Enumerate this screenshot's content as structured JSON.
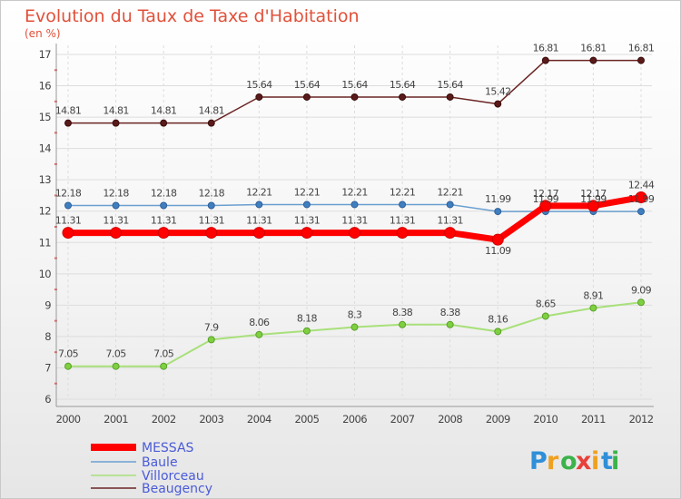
{
  "chart_data": {
    "type": "line",
    "title": "Evolution du Taux de Taxe d'Habitation",
    "ylabel": "(en %)",
    "xlabel": "",
    "x": [
      "2000",
      "2001",
      "2002",
      "2003",
      "2004",
      "2005",
      "2006",
      "2007",
      "2008",
      "2009",
      "2010",
      "2011",
      "2012"
    ],
    "ylim": [
      6,
      17
    ],
    "yticks": [
      "6",
      "7",
      "8",
      "9",
      "10",
      "11",
      "12",
      "13",
      "14",
      "15",
      "16",
      "17"
    ],
    "series": [
      {
        "name": "MESSAS",
        "color": "#ff0000",
        "values": [
          11.31,
          11.31,
          11.31,
          11.31,
          11.31,
          11.31,
          11.31,
          11.31,
          11.31,
          11.09,
          12.17,
          12.17,
          12.44
        ],
        "labels": [
          "11.31",
          "11.31",
          "11.31",
          "11.31",
          "11.31",
          "11.31",
          "11.31",
          "11.31",
          "11.31",
          "11.09",
          "12.17",
          "12.17",
          "12.44"
        ]
      },
      {
        "name": "Baule",
        "color": "#6a9fd0",
        "values": [
          12.18,
          12.18,
          12.18,
          12.18,
          12.21,
          12.21,
          12.21,
          12.21,
          12.21,
          11.99,
          11.99,
          11.99,
          11.99
        ],
        "labels": [
          "12.18",
          "12.18",
          "12.18",
          "12.18",
          "12.21",
          "12.21",
          "12.21",
          "12.21",
          "12.21",
          "11.99",
          "11.99",
          "11.99",
          "11.99"
        ]
      },
      {
        "name": "Villorceau",
        "color": "#a8e07a",
        "values": [
          7.05,
          7.05,
          7.05,
          7.9,
          8.06,
          8.18,
          8.3,
          8.38,
          8.38,
          8.16,
          8.65,
          8.91,
          9.09
        ],
        "labels": [
          "7.05",
          "7.05",
          "7.05",
          "7.9",
          "8.06",
          "8.18",
          "8.3",
          "8.38",
          "8.38",
          "8.16",
          "8.65",
          "8.91",
          "9.09"
        ]
      },
      {
        "name": "Beaugency",
        "color": "#6b2424",
        "values": [
          14.81,
          14.81,
          14.81,
          14.81,
          15.64,
          15.64,
          15.64,
          15.64,
          15.64,
          15.42,
          16.81,
          16.81,
          16.81
        ],
        "labels": [
          "14.81",
          "14.81",
          "14.81",
          "14.81",
          "15.64",
          "15.64",
          "15.64",
          "15.64",
          "15.64",
          "15.42",
          "16.81",
          "16.81",
          "16.81"
        ]
      }
    ],
    "grid": true,
    "legend_position": "bottom-left"
  },
  "logo": {
    "letters": [
      "P",
      "r",
      "o",
      "x",
      "i",
      "t",
      "i"
    ],
    "colors": [
      "#2f8fd8",
      "#f0a020",
      "#3bb34a",
      "#e8403a",
      "#f0a020",
      "#2f8fd8",
      "#3bb34a"
    ]
  }
}
